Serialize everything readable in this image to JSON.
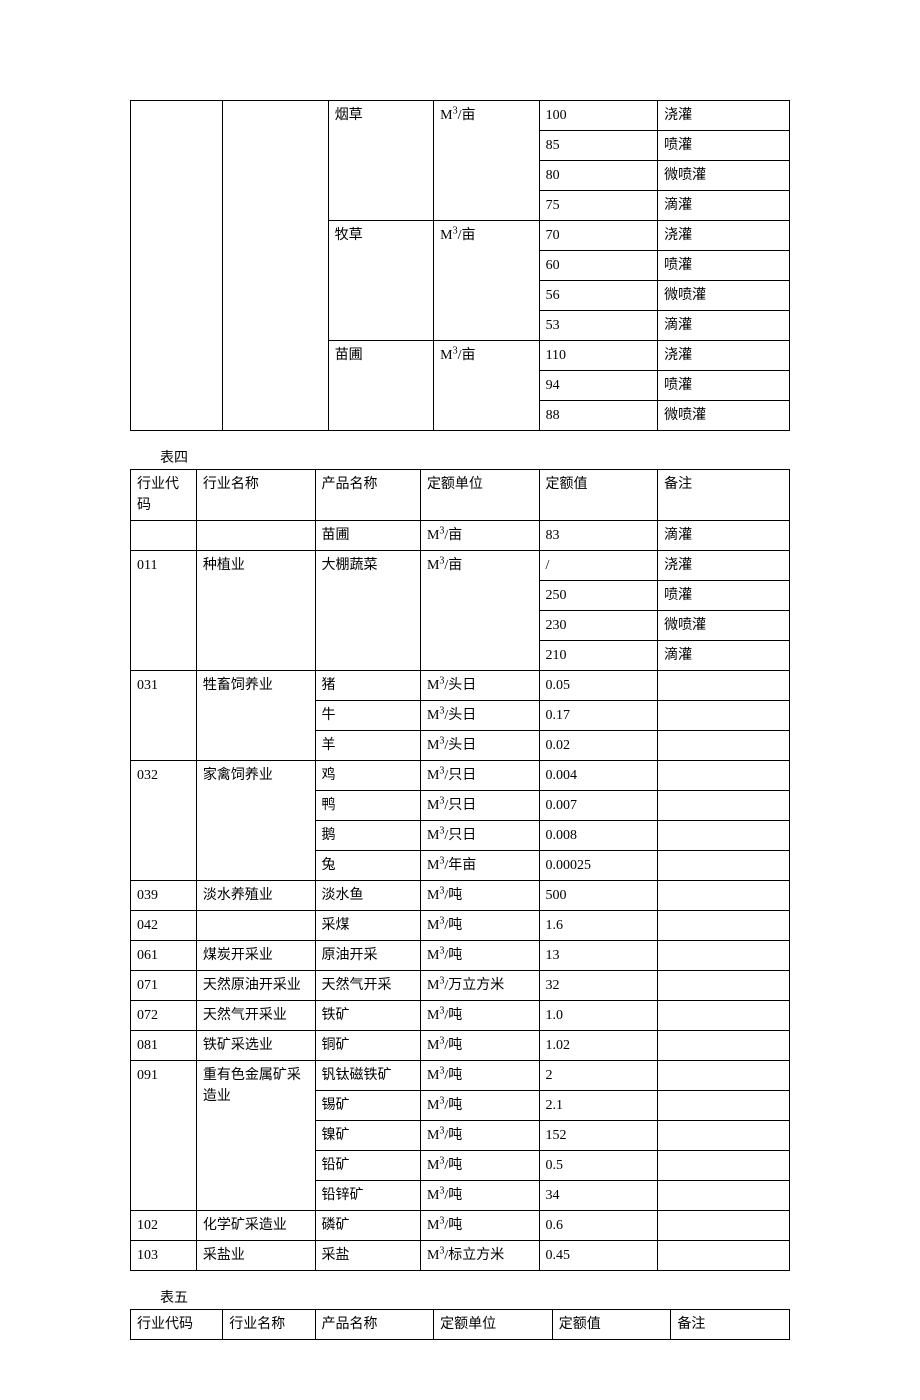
{
  "table_top": {
    "col_widths": [
      "14%",
      "16%",
      "16%",
      "16%",
      "18%",
      "20%"
    ],
    "rows": [
      {
        "code": "",
        "name": "",
        "product": "烟草",
        "unit": "M³/亩",
        "value": "100",
        "note": "浇灌",
        "span": {
          "code": 11,
          "name": 11,
          "product": 4,
          "unit": 4
        }
      },
      {
        "value": "85",
        "note": "喷灌"
      },
      {
        "value": "80",
        "note": "微喷灌"
      },
      {
        "value": "75",
        "note": "滴灌"
      },
      {
        "product": "牧草",
        "unit": "M³/亩",
        "value": "70",
        "note": "浇灌",
        "span": {
          "product": 4,
          "unit": 4
        }
      },
      {
        "value": "60",
        "note": "喷灌"
      },
      {
        "value": "56",
        "note": "微喷灌"
      },
      {
        "value": "53",
        "note": "滴灌"
      },
      {
        "product": "苗圃",
        "unit": "M³/亩",
        "value": "110",
        "note": "浇灌",
        "span": {
          "product": 3,
          "unit": 3
        }
      },
      {
        "value": "94",
        "note": "喷灌"
      },
      {
        "value": "88",
        "note": "微喷灌"
      }
    ]
  },
  "table4": {
    "caption": "表四",
    "col_widths": [
      "10%",
      "18%",
      "16%",
      "18%",
      "18%",
      "20%"
    ],
    "header": {
      "code": "行业代码",
      "name": "行业名称",
      "product": "产品名称",
      "unit": "定额单位",
      "value": "定额值",
      "note": "备注"
    },
    "rows": [
      {
        "code": "",
        "name": "",
        "product": "苗圃",
        "unit": "M³/亩",
        "value": "83",
        "note": "滴灌"
      },
      {
        "code": "011",
        "name": "种植业",
        "product": "大棚蔬菜",
        "unit": "M³/亩",
        "value": "/",
        "note": "浇灌",
        "span": {
          "code": 4,
          "name": 4,
          "product": 4,
          "unit": 4
        }
      },
      {
        "value": "250",
        "note": "喷灌"
      },
      {
        "value": "230",
        "note": "微喷灌"
      },
      {
        "value": "210",
        "note": "滴灌"
      },
      {
        "code": "031",
        "name": "牲畜饲养业",
        "product": "猪",
        "unit": "M³/头日",
        "value": "0.05",
        "note": "",
        "span": {
          "code": 3,
          "name": 3
        }
      },
      {
        "product": "牛",
        "unit": "M³/头日",
        "value": "0.17",
        "note": ""
      },
      {
        "product": "羊",
        "unit": "M³/头日",
        "value": "0.02",
        "note": ""
      },
      {
        "code": "032",
        "name": "家禽饲养业",
        "product": "鸡",
        "unit": "M³/只日",
        "value": "0.004",
        "note": "",
        "span": {
          "code": 4,
          "name": 4
        }
      },
      {
        "product": "鸭",
        "unit": "M³/只日",
        "value": "0.007",
        "note": ""
      },
      {
        "product": "鹅",
        "unit": "M³/只日",
        "value": "0.008",
        "note": ""
      },
      {
        "product": "兔",
        "unit": "M³/年亩",
        "value": "0.00025",
        "note": ""
      },
      {
        "code": "039",
        "name": "淡水养殖业",
        "product": "淡水鱼",
        "unit": "M³/吨",
        "value": "500",
        "note": ""
      },
      {
        "code": "042",
        "name": "",
        "product": "采煤",
        "unit": "M³/吨",
        "value": "1.6",
        "note": ""
      },
      {
        "code": "061",
        "name": "煤炭开采业",
        "product": "原油开采",
        "unit": "M³/吨",
        "value": "13",
        "note": ""
      },
      {
        "code": "071",
        "name": "天然原油开采业",
        "product": "天然气开采",
        "unit": "M³/万立方米",
        "value": "32",
        "note": ""
      },
      {
        "code": "072",
        "name": "天然气开采业",
        "product": "铁矿",
        "unit": "M³/吨",
        "value": "1.0",
        "note": ""
      },
      {
        "code": "081",
        "name": "铁矿采选业",
        "product": "铜矿",
        "unit": "M³/吨",
        "value": "1.02",
        "note": ""
      },
      {
        "code": "091",
        "name": "重有色金属矿采造业",
        "product": "钒钛磁铁矿",
        "unit": "M³/吨",
        "value": "2",
        "note": "",
        "span": {
          "code": 5,
          "name": 5
        }
      },
      {
        "product": "锡矿",
        "unit": "M³/吨",
        "value": "2.1",
        "note": ""
      },
      {
        "product": "镍矿",
        "unit": "M³/吨",
        "value": "152",
        "note": ""
      },
      {
        "product": "铅矿",
        "unit": "M³/吨",
        "value": "0.5",
        "note": ""
      },
      {
        "product": "铅锌矿",
        "unit": "M³/吨",
        "value": "34",
        "note": ""
      },
      {
        "code": "102",
        "name": "化学矿采造业",
        "product": "磷矿",
        "unit": "M³/吨",
        "value": "0.6",
        "note": ""
      },
      {
        "code": "103",
        "name": "采盐业",
        "product": "采盐",
        "unit": "M³/标立方米",
        "value": "0.45",
        "note": ""
      }
    ]
  },
  "table5": {
    "caption": "表五",
    "col_widths": [
      "14%",
      "14%",
      "18%",
      "18%",
      "18%",
      "18%"
    ],
    "header": {
      "code": "行业代码",
      "name": "行业名称",
      "product": "产品名称",
      "unit": "定额单位",
      "value": "定额值",
      "note": "备注"
    }
  }
}
